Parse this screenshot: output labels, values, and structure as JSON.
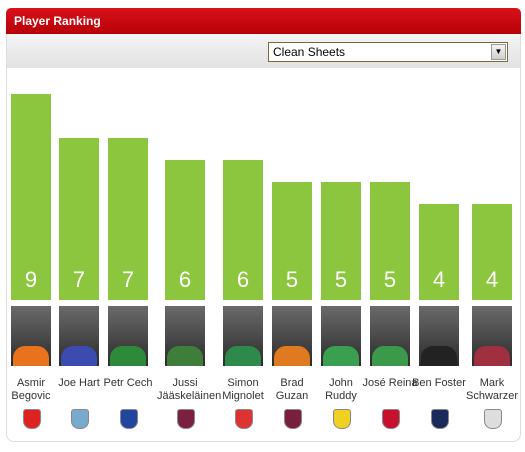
{
  "header": {
    "title": "Player Ranking"
  },
  "filter": {
    "selected": "Clean Sheets"
  },
  "chart_data": {
    "type": "bar",
    "color": "#8cc63f",
    "categories": [
      "Asmir Begovic",
      "Joe Hart",
      "Petr Cech",
      "Jussi Jääskeläinen",
      "Simon Mignolet",
      "Brad Guzan",
      "John Ruddy",
      "José Reina",
      "Ben Foster",
      "Mark Schwarzer"
    ],
    "values": [
      9,
      7,
      7,
      6,
      6,
      5,
      5,
      5,
      4,
      4
    ]
  }
}
